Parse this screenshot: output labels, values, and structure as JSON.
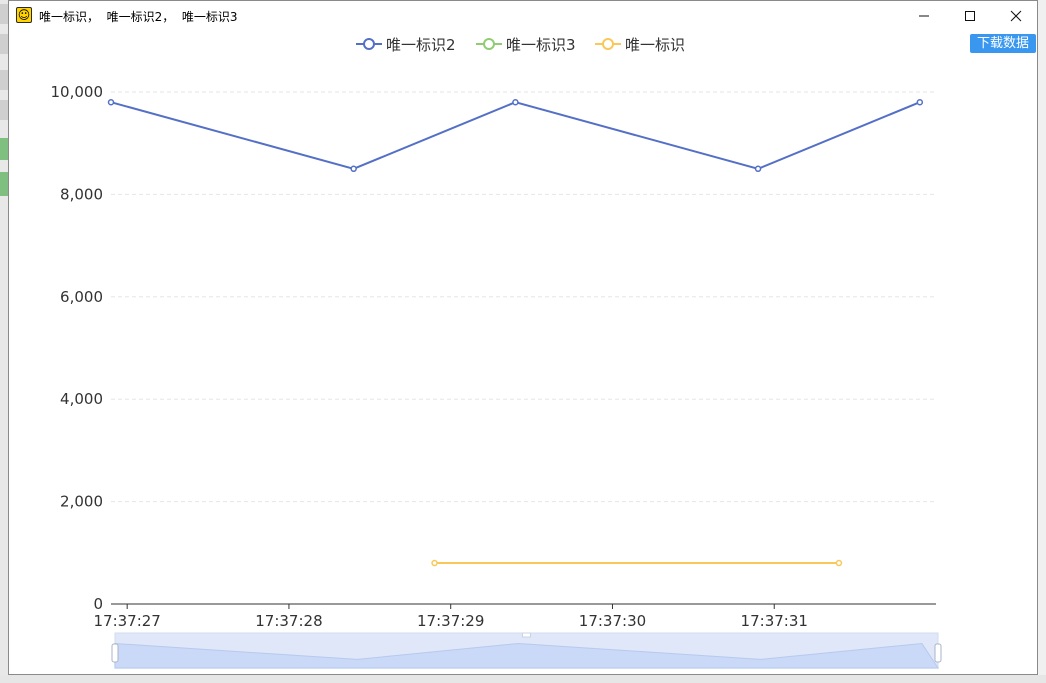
{
  "window": {
    "title": "唯一标识，  唯一标识2，  唯一标识3",
    "icon": "smiley-icon",
    "controls": {
      "minimize": "minimize-icon",
      "maximize": "maximize-icon",
      "close": "close-icon"
    }
  },
  "toolbox": {
    "download_label": "下载数据",
    "color": "#3a97f0"
  },
  "chart_data": {
    "type": "line",
    "title": "",
    "xlabel": "",
    "ylabel": "",
    "x_unit": "time",
    "xlim": [
      "17:37:26.9",
      "17:37:32.0"
    ],
    "ylim": [
      0,
      10000
    ],
    "y_ticks": [
      0,
      2000,
      4000,
      6000,
      8000,
      10000
    ],
    "y_tick_labels": [
      "0",
      "2,000",
      "4,000",
      "6,000",
      "8,000",
      "10,000"
    ],
    "x_ticks": [
      "17:37:27",
      "17:37:28",
      "17:37:29",
      "17:37:30",
      "17:37:31"
    ],
    "grid": true,
    "legend_position": "top-center",
    "series": [
      {
        "name": "唯一标识2",
        "color": "#5470c6",
        "points": [
          {
            "x": "17:37:26.9",
            "y": 9800
          },
          {
            "x": "17:37:28.4",
            "y": 8500
          },
          {
            "x": "17:37:29.4",
            "y": 9800
          },
          {
            "x": "17:37:30.9",
            "y": 8500
          },
          {
            "x": "17:37:31.9",
            "y": 9800
          }
        ]
      },
      {
        "name": "唯一标识3",
        "color": "#91cc75",
        "points": []
      },
      {
        "name": "唯一标识",
        "color": "#fac858",
        "points": [
          {
            "x": "17:37:28.9",
            "y": 800
          },
          {
            "x": "17:37:31.4",
            "y": 800
          }
        ]
      }
    ],
    "data_zoom": {
      "start_percent": 0,
      "end_percent": 100,
      "fill_color": "#d2e0fb"
    }
  }
}
